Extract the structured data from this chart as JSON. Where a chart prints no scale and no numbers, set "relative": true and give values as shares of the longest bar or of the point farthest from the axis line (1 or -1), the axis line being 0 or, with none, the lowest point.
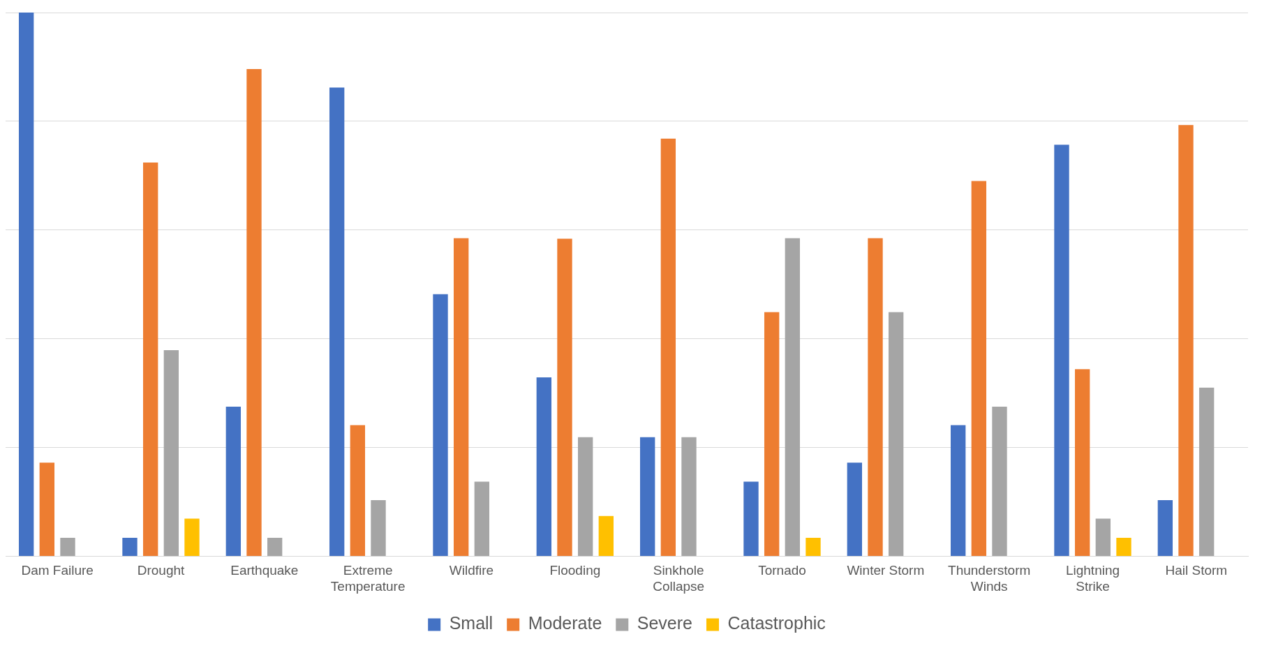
{
  "chart_data": {
    "type": "bar",
    "relative": true,
    "grid": "y",
    "legend": "bottom",
    "categories": [
      "Dam Failure",
      "Drought",
      "Earthquake",
      "Extreme Temperature",
      "Wildfire",
      "Flooding",
      "Sinkhole Collapse",
      "Tornado",
      "Winter Storm",
      "Thunderstorm Winds",
      "Lightning Strike",
      "Hail Storm"
    ],
    "series": [
      {
        "name": "Small",
        "color": "#4472c4",
        "values": [
          1.0,
          0.034,
          0.275,
          0.862,
          0.482,
          0.329,
          0.219,
          0.137,
          0.172,
          0.241,
          0.757,
          0.103
        ]
      },
      {
        "name": "Moderate",
        "color": "#ed7d31",
        "values": [
          0.172,
          0.724,
          0.896,
          0.241,
          0.585,
          0.584,
          0.768,
          0.449,
          0.585,
          0.69,
          0.344,
          0.793
        ]
      },
      {
        "name": "Severe",
        "color": "#a5a5a5",
        "values": [
          0.034,
          0.379,
          0.034,
          0.103,
          0.137,
          0.219,
          0.219,
          0.585,
          0.449,
          0.275,
          0.069,
          0.31
        ]
      },
      {
        "name": "Catastrophic",
        "color": "#ffc000",
        "values": [
          null,
          0.069,
          null,
          null,
          null,
          0.074,
          null,
          0.034,
          null,
          null,
          0.034,
          null
        ]
      }
    ]
  }
}
